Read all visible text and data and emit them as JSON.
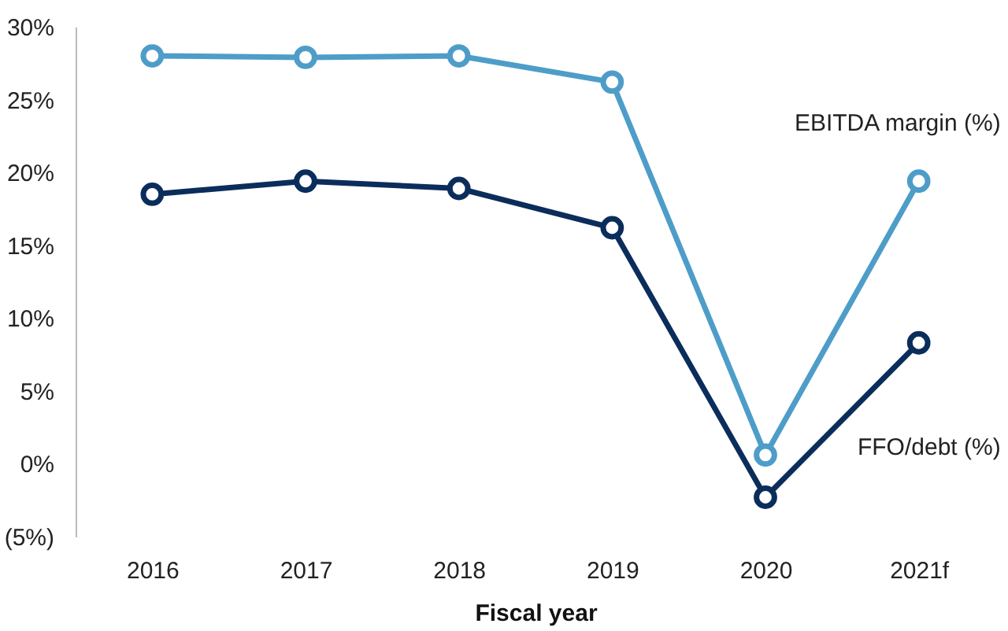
{
  "chart_data": {
    "type": "line",
    "xlabel": "Fiscal year",
    "categories": [
      "2016",
      "2017",
      "2018",
      "2019",
      "2020",
      "2021f"
    ],
    "series": [
      {
        "name": "EBITDA margin (%)",
        "color": "#4e9dc9",
        "values": [
          28.0,
          27.9,
          28.0,
          26.2,
          0.6,
          19.4
        ]
      },
      {
        "name": "FFO/debt (%)",
        "color": "#0b2d5b",
        "values": [
          18.5,
          19.4,
          18.9,
          16.2,
          -2.3,
          8.3
        ]
      }
    ],
    "ylim": [
      -5,
      30
    ],
    "yticks": [
      {
        "value": -5,
        "label": "(5%)"
      },
      {
        "value": 0,
        "label": "0%"
      },
      {
        "value": 5,
        "label": "5%"
      },
      {
        "value": 10,
        "label": "10%"
      },
      {
        "value": 15,
        "label": "15%"
      },
      {
        "value": 20,
        "label": "20%"
      },
      {
        "value": 25,
        "label": "25%"
      },
      {
        "value": 30,
        "label": "30%"
      }
    ],
    "grid": false,
    "legend": false,
    "marker": "circle",
    "line_style": "solid"
  }
}
